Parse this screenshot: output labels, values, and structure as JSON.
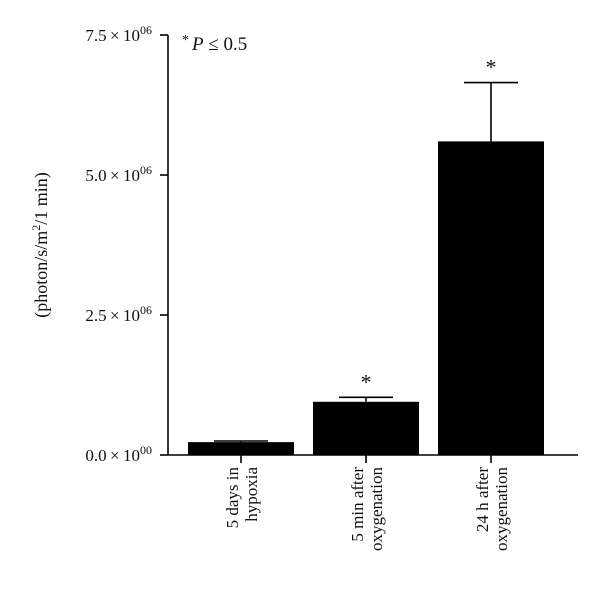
{
  "chart_data": {
    "type": "bar",
    "categories": [
      [
        "5 days in",
        "hypoxia"
      ],
      [
        "5 min after",
        "oxygenation"
      ],
      [
        "24 h after",
        "oxygenation"
      ]
    ],
    "values": [
      230000,
      950000,
      5600000
    ],
    "error_upper": [
      250000,
      1030000,
      6650000
    ],
    "significance_markers": [
      "",
      "*",
      "*"
    ],
    "ylabel": "(photon/s/m²/1 min)",
    "ylim": [
      0,
      7500000
    ],
    "yticks": [
      {
        "value": 0,
        "mantissa": "0.0",
        "exp": "00"
      },
      {
        "value": 2500000,
        "mantissa": "2.5",
        "exp": "06"
      },
      {
        "value": 5000000,
        "mantissa": "5.0",
        "exp": "06"
      },
      {
        "value": 7500000,
        "mantissa": "7.5",
        "exp": "06"
      }
    ],
    "annotation": {
      "star": "*",
      "p_text": "P ≤ 0.5"
    },
    "bar_color": "#000000",
    "grid": false,
    "legend": "none"
  }
}
